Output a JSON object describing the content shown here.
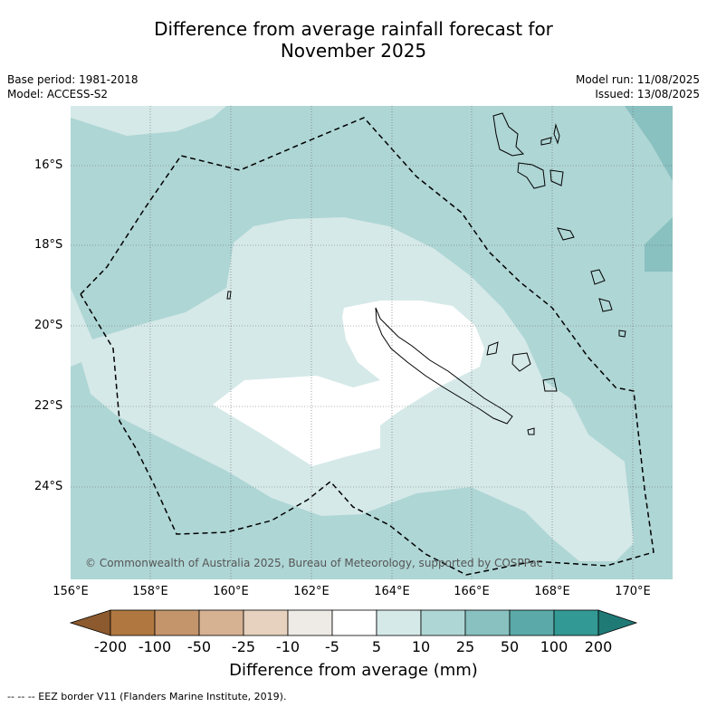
{
  "title_line1": "Difference from average rainfall forecast for",
  "title_line2": "November 2025",
  "base_period": "Base period: 1981-2018",
  "model": "Model: ACCESS-S2",
  "model_run": "Model run: 11/08/2025",
  "issued": "Issued: 13/08/2025",
  "copyright": "© Commonwealth of Australia 2025, Bureau of Meteorology, supported by COSPPac",
  "lat_labels": [
    "16°S",
    "18°S",
    "20°S",
    "22°S",
    "24°S"
  ],
  "lon_labels": [
    "156°E",
    "158°E",
    "160°E",
    "162°E",
    "164°E",
    "166°E",
    "168°E",
    "170°E"
  ],
  "colorbar": {
    "labels": [
      "-200",
      "-100",
      "-50",
      "-25",
      "-10",
      "-5",
      "5",
      "10",
      "25",
      "50",
      "100",
      "200"
    ],
    "colors": [
      "#8c5a2e",
      "#b07840",
      "#c4956a",
      "#d6b292",
      "#e6d2be",
      "#eeeae6",
      "#ffffff",
      "#d5e9e8",
      "#aed6d5",
      "#89c0c0",
      "#5ba9a8",
      "#339994",
      "#1f7a76"
    ],
    "title": "Difference from average (mm)"
  },
  "footer": "--  --  -- EEZ border V11 (Flanders Marine Institute, 2019)."
}
